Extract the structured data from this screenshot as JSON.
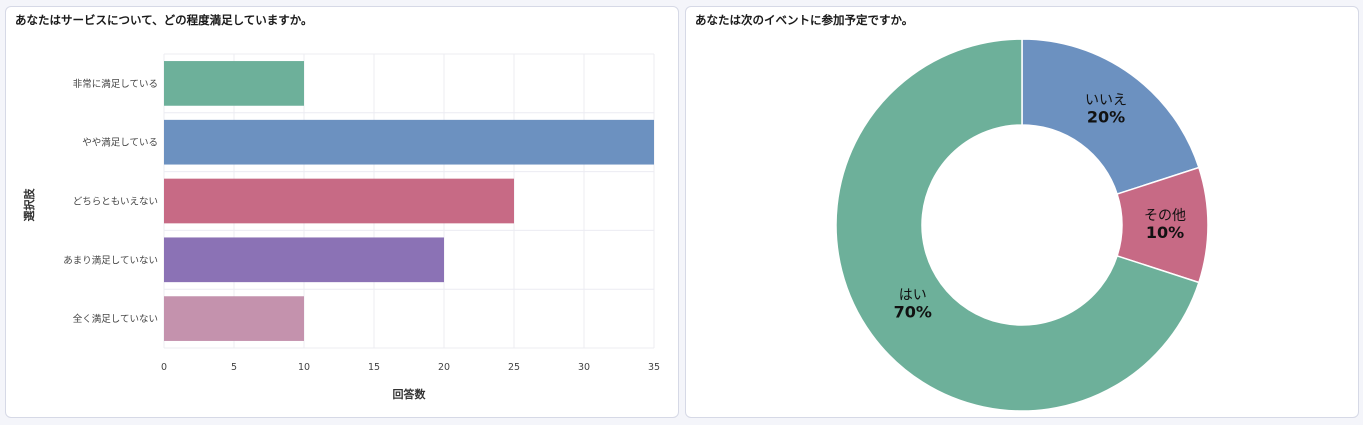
{
  "charts": [
    {
      "title": "あなたはサービスについて、どの程度満足していますか。",
      "chart_data": {
        "type": "bar",
        "orientation": "horizontal",
        "categories": [
          "非常に満足している",
          "やや満足している",
          "どちらともいえない",
          "あまり満足していない",
          "全く満足していない"
        ],
        "values": [
          10,
          35,
          25,
          20,
          10
        ],
        "colors": [
          "#6db09a",
          "#6c91c0",
          "#c76a85",
          "#8b72b5",
          "#c492ad"
        ],
        "xlabel": "回答数",
        "ylabel": "選択肢",
        "xlim": [
          0,
          35
        ],
        "xticks": [
          0,
          5,
          10,
          15,
          20,
          25,
          30,
          35
        ],
        "grid": true
      }
    },
    {
      "title": "あなたは次のイベントに参加予定ですか。",
      "chart_data": {
        "type": "pie",
        "donut": true,
        "slices": [
          {
            "label": "いいえ",
            "value": 20,
            "pct_label": "20%",
            "color": "#6c91c0"
          },
          {
            "label": "その他",
            "value": 10,
            "pct_label": "10%",
            "color": "#c76a85"
          },
          {
            "label": "はい",
            "value": 70,
            "pct_label": "70%",
            "color": "#6db09a"
          }
        ]
      }
    }
  ]
}
